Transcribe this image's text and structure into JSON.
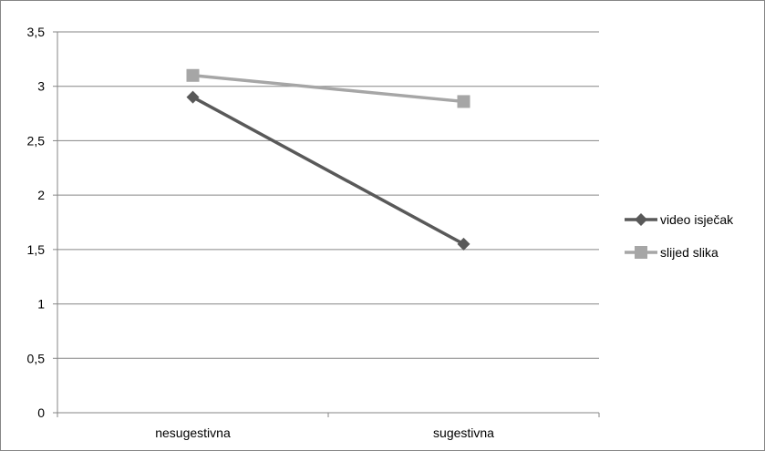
{
  "chart_data": {
    "type": "line",
    "categories": [
      "nesugestivna",
      "sugestivna"
    ],
    "series": [
      {
        "name": "video isječak",
        "values": [
          2.9,
          1.55
        ],
        "color": "#595959",
        "marker": "diamond"
      },
      {
        "name": "slijed slika",
        "values": [
          3.1,
          2.86
        ],
        "color": "#a6a6a6",
        "marker": "square"
      }
    ],
    "ylim": [
      0,
      3.5
    ],
    "yticks": [
      "0",
      "0,5",
      "1",
      "1,5",
      "2",
      "2,5",
      "3",
      "3,5"
    ],
    "grid": true,
    "legend_position": "right",
    "title": "",
    "xlabel": "",
    "ylabel": ""
  }
}
